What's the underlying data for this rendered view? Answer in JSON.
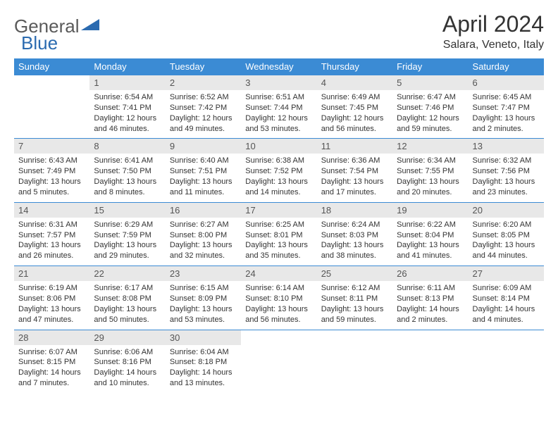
{
  "logo": {
    "general": "General",
    "blue": "Blue"
  },
  "title": "April 2024",
  "location": "Salara, Veneto, Italy",
  "colors": {
    "header_bg": "#3b8bd4",
    "header_text": "#ffffff",
    "daynum_bg": "#e8e8e8",
    "border": "#3b8bd4",
    "text": "#333333",
    "logo_general": "#5a5a5a",
    "logo_blue": "#2b6bb0"
  },
  "weekdays": [
    "Sunday",
    "Monday",
    "Tuesday",
    "Wednesday",
    "Thursday",
    "Friday",
    "Saturday"
  ],
  "weeks": [
    [
      null,
      {
        "n": "1",
        "sr": "Sunrise: 6:54 AM",
        "ss": "Sunset: 7:41 PM",
        "dl": "Daylight: 12 hours and 46 minutes."
      },
      {
        "n": "2",
        "sr": "Sunrise: 6:52 AM",
        "ss": "Sunset: 7:42 PM",
        "dl": "Daylight: 12 hours and 49 minutes."
      },
      {
        "n": "3",
        "sr": "Sunrise: 6:51 AM",
        "ss": "Sunset: 7:44 PM",
        "dl": "Daylight: 12 hours and 53 minutes."
      },
      {
        "n": "4",
        "sr": "Sunrise: 6:49 AM",
        "ss": "Sunset: 7:45 PM",
        "dl": "Daylight: 12 hours and 56 minutes."
      },
      {
        "n": "5",
        "sr": "Sunrise: 6:47 AM",
        "ss": "Sunset: 7:46 PM",
        "dl": "Daylight: 12 hours and 59 minutes."
      },
      {
        "n": "6",
        "sr": "Sunrise: 6:45 AM",
        "ss": "Sunset: 7:47 PM",
        "dl": "Daylight: 13 hours and 2 minutes."
      }
    ],
    [
      {
        "n": "7",
        "sr": "Sunrise: 6:43 AM",
        "ss": "Sunset: 7:49 PM",
        "dl": "Daylight: 13 hours and 5 minutes."
      },
      {
        "n": "8",
        "sr": "Sunrise: 6:41 AM",
        "ss": "Sunset: 7:50 PM",
        "dl": "Daylight: 13 hours and 8 minutes."
      },
      {
        "n": "9",
        "sr": "Sunrise: 6:40 AM",
        "ss": "Sunset: 7:51 PM",
        "dl": "Daylight: 13 hours and 11 minutes."
      },
      {
        "n": "10",
        "sr": "Sunrise: 6:38 AM",
        "ss": "Sunset: 7:52 PM",
        "dl": "Daylight: 13 hours and 14 minutes."
      },
      {
        "n": "11",
        "sr": "Sunrise: 6:36 AM",
        "ss": "Sunset: 7:54 PM",
        "dl": "Daylight: 13 hours and 17 minutes."
      },
      {
        "n": "12",
        "sr": "Sunrise: 6:34 AM",
        "ss": "Sunset: 7:55 PM",
        "dl": "Daylight: 13 hours and 20 minutes."
      },
      {
        "n": "13",
        "sr": "Sunrise: 6:32 AM",
        "ss": "Sunset: 7:56 PM",
        "dl": "Daylight: 13 hours and 23 minutes."
      }
    ],
    [
      {
        "n": "14",
        "sr": "Sunrise: 6:31 AM",
        "ss": "Sunset: 7:57 PM",
        "dl": "Daylight: 13 hours and 26 minutes."
      },
      {
        "n": "15",
        "sr": "Sunrise: 6:29 AM",
        "ss": "Sunset: 7:59 PM",
        "dl": "Daylight: 13 hours and 29 minutes."
      },
      {
        "n": "16",
        "sr": "Sunrise: 6:27 AM",
        "ss": "Sunset: 8:00 PM",
        "dl": "Daylight: 13 hours and 32 minutes."
      },
      {
        "n": "17",
        "sr": "Sunrise: 6:25 AM",
        "ss": "Sunset: 8:01 PM",
        "dl": "Daylight: 13 hours and 35 minutes."
      },
      {
        "n": "18",
        "sr": "Sunrise: 6:24 AM",
        "ss": "Sunset: 8:03 PM",
        "dl": "Daylight: 13 hours and 38 minutes."
      },
      {
        "n": "19",
        "sr": "Sunrise: 6:22 AM",
        "ss": "Sunset: 8:04 PM",
        "dl": "Daylight: 13 hours and 41 minutes."
      },
      {
        "n": "20",
        "sr": "Sunrise: 6:20 AM",
        "ss": "Sunset: 8:05 PM",
        "dl": "Daylight: 13 hours and 44 minutes."
      }
    ],
    [
      {
        "n": "21",
        "sr": "Sunrise: 6:19 AM",
        "ss": "Sunset: 8:06 PM",
        "dl": "Daylight: 13 hours and 47 minutes."
      },
      {
        "n": "22",
        "sr": "Sunrise: 6:17 AM",
        "ss": "Sunset: 8:08 PM",
        "dl": "Daylight: 13 hours and 50 minutes."
      },
      {
        "n": "23",
        "sr": "Sunrise: 6:15 AM",
        "ss": "Sunset: 8:09 PM",
        "dl": "Daylight: 13 hours and 53 minutes."
      },
      {
        "n": "24",
        "sr": "Sunrise: 6:14 AM",
        "ss": "Sunset: 8:10 PM",
        "dl": "Daylight: 13 hours and 56 minutes."
      },
      {
        "n": "25",
        "sr": "Sunrise: 6:12 AM",
        "ss": "Sunset: 8:11 PM",
        "dl": "Daylight: 13 hours and 59 minutes."
      },
      {
        "n": "26",
        "sr": "Sunrise: 6:11 AM",
        "ss": "Sunset: 8:13 PM",
        "dl": "Daylight: 14 hours and 2 minutes."
      },
      {
        "n": "27",
        "sr": "Sunrise: 6:09 AM",
        "ss": "Sunset: 8:14 PM",
        "dl": "Daylight: 14 hours and 4 minutes."
      }
    ],
    [
      {
        "n": "28",
        "sr": "Sunrise: 6:07 AM",
        "ss": "Sunset: 8:15 PM",
        "dl": "Daylight: 14 hours and 7 minutes."
      },
      {
        "n": "29",
        "sr": "Sunrise: 6:06 AM",
        "ss": "Sunset: 8:16 PM",
        "dl": "Daylight: 14 hours and 10 minutes."
      },
      {
        "n": "30",
        "sr": "Sunrise: 6:04 AM",
        "ss": "Sunset: 8:18 PM",
        "dl": "Daylight: 14 hours and 13 minutes."
      },
      null,
      null,
      null,
      null
    ]
  ]
}
